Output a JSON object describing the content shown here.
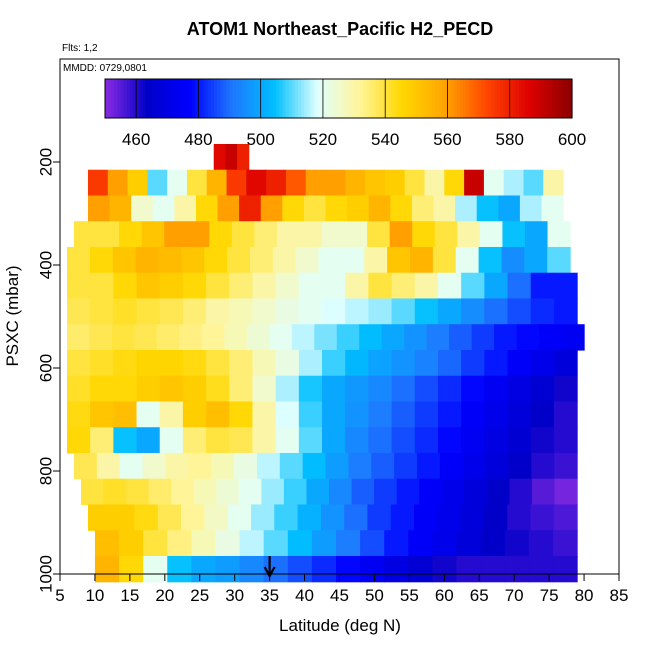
{
  "chart_data": {
    "type": "heatmap",
    "title": "ATOM1 Northeast_Pacific H2_PECD",
    "subtitle_flights": "Flts: 1,2",
    "subtitle_dates": "MMDD: 0729,0801",
    "xlabel": "Latitude (deg N)",
    "ylabel": "PSXC (mbar)",
    "xlim": [
      5,
      85
    ],
    "ylim": [
      1000,
      0
    ],
    "x_ticks": [
      "5",
      "10",
      "15",
      "20",
      "25",
      "30",
      "35",
      "40",
      "45",
      "50",
      "55",
      "60",
      "65",
      "70",
      "75",
      "80",
      "85"
    ],
    "y_ticks": [
      "200",
      "400",
      "600",
      "800",
      "1000"
    ],
    "colorbar": {
      "range": [
        450,
        600
      ],
      "ticks": [
        "460",
        "480",
        "500",
        "520",
        "540",
        "560",
        "580",
        "600"
      ],
      "colors": [
        "#8a2be2",
        "#0000c8",
        "#0000ff",
        "#1e78ff",
        "#00bfff",
        "#e0ffff",
        "#fff59a",
        "#ffd700",
        "#ffa500",
        "#ff4500",
        "#dd0000",
        "#8b0000"
      ]
    },
    "marker": {
      "x": 35,
      "label": "arrow"
    },
    "levels_mbar": [
      190,
      240,
      290,
      340,
      390,
      440,
      490,
      540,
      590,
      640,
      690,
      740,
      790,
      840,
      890,
      940,
      990
    ],
    "rows": [
      {
        "p": 190,
        "x0": 27,
        "x1": 32,
        "v": [
          585,
          590,
          580
        ]
      },
      {
        "p": 240,
        "x0": 9,
        "x1": 77,
        "v": [
          575,
          560,
          548,
          510,
          520,
          540,
          555,
          575,
          585,
          580,
          570,
          560,
          560,
          555,
          550,
          548,
          540,
          530,
          545,
          590,
          520,
          515,
          510,
          530
        ]
      },
      {
        "p": 290,
        "x0": 9,
        "x1": 77,
        "v": [
          560,
          555,
          525,
          520,
          530,
          545,
          560,
          580,
          560,
          545,
          540,
          545,
          548,
          555,
          545,
          535,
          530,
          515,
          505,
          500,
          515,
          520
        ]
      },
      {
        "p": 340,
        "x0": 7,
        "x1": 78,
        "v": [
          540,
          540,
          545,
          550,
          560,
          560,
          545,
          540,
          535,
          530,
          530,
          525,
          525,
          540,
          560,
          545,
          540,
          530,
          520,
          505,
          500,
          520
        ]
      },
      {
        "p": 390,
        "x0": 6,
        "x1": 78,
        "v": [
          540,
          545,
          550,
          555,
          553,
          550,
          545,
          540,
          535,
          530,
          525,
          520,
          520,
          530,
          550,
          555,
          540,
          520,
          505,
          495,
          500,
          510
        ]
      },
      {
        "p": 440,
        "x0": 6,
        "x1": 79,
        "v": [
          540,
          540,
          545,
          550,
          548,
          545,
          540,
          535,
          530,
          525,
          520,
          520,
          530,
          540,
          535,
          530,
          520,
          510,
          500,
          490,
          480,
          480
        ]
      },
      {
        "p": 490,
        "x0": 6,
        "x1": 79,
        "v": [
          538,
          540,
          542,
          540,
          538,
          535,
          530,
          528,
          525,
          522,
          520,
          518,
          516,
          514,
          510,
          505,
          500,
          495,
          490,
          486,
          482,
          480
        ]
      },
      {
        "p": 540,
        "x0": 6,
        "x1": 80,
        "v": [
          536,
          538,
          540,
          538,
          536,
          534,
          532,
          528,
          524,
          520,
          516,
          512,
          508,
          504,
          500,
          496,
          492,
          488,
          484,
          480,
          478,
          476,
          474
        ]
      },
      {
        "p": 590,
        "x0": 6,
        "x1": 79,
        "v": [
          540,
          542,
          544,
          546,
          546,
          544,
          540,
          535,
          528,
          522,
          515,
          508,
          503,
          499,
          496,
          493,
          489,
          484,
          480,
          476,
          472,
          468
        ]
      },
      {
        "p": 640,
        "x0": 6,
        "x1": 79,
        "v": [
          542,
          545,
          545,
          548,
          550,
          548,
          543,
          535,
          525,
          515,
          506,
          500,
          497,
          494,
          490,
          486,
          482,
          478,
          474,
          470,
          466,
          462
        ]
      },
      {
        "p": 690,
        "x0": 6,
        "x1": 79,
        "v": [
          544,
          550,
          552,
          520,
          530,
          548,
          552,
          545,
          530,
          518,
          508,
          500,
          496,
          492,
          488,
          484,
          480,
          476,
          472,
          468,
          464,
          460
        ]
      },
      {
        "p": 740,
        "x0": 6,
        "x1": 79,
        "v": [
          545,
          535,
          505,
          500,
          520,
          535,
          540,
          538,
          530,
          520,
          510,
          500,
          494,
          490,
          486,
          482,
          478,
          474,
          470,
          466,
          462,
          460
        ]
      },
      {
        "p": 790,
        "x0": 7,
        "x1": 79,
        "v": [
          538,
          530,
          520,
          525,
          530,
          532,
          528,
          522,
          516,
          510,
          504,
          498,
          492,
          488,
          484,
          480,
          476,
          472,
          468,
          464,
          460,
          458
        ]
      },
      {
        "p": 840,
        "x0": 8,
        "x1": 79,
        "v": [
          540,
          542,
          540,
          536,
          532,
          528,
          524,
          520,
          514,
          508,
          500,
          494,
          488,
          484,
          480,
          476,
          472,
          468,
          464,
          460,
          455,
          452
        ]
      },
      {
        "p": 890,
        "x0": 9,
        "x1": 79,
        "v": [
          548,
          548,
          544,
          538,
          532,
          526,
          520,
          514,
          508,
          502,
          496,
          490,
          484,
          480,
          476,
          472,
          468,
          464,
          460,
          458,
          456
        ]
      },
      {
        "p": 940,
        "x0": 10,
        "x1": 79,
        "v": [
          552,
          548,
          540,
          534,
          528,
          522,
          516,
          510,
          504,
          498,
          492,
          486,
          480,
          476,
          472,
          468,
          464,
          462,
          460,
          458
        ]
      },
      {
        "p": 990,
        "x0": 10,
        "x1": 79,
        "v": [
          555,
          545,
          520,
          505,
          500,
          498,
          494,
          490,
          486,
          482,
          478,
          474,
          470,
          466,
          462,
          460,
          460,
          460,
          460,
          460
        ]
      }
    ]
  }
}
